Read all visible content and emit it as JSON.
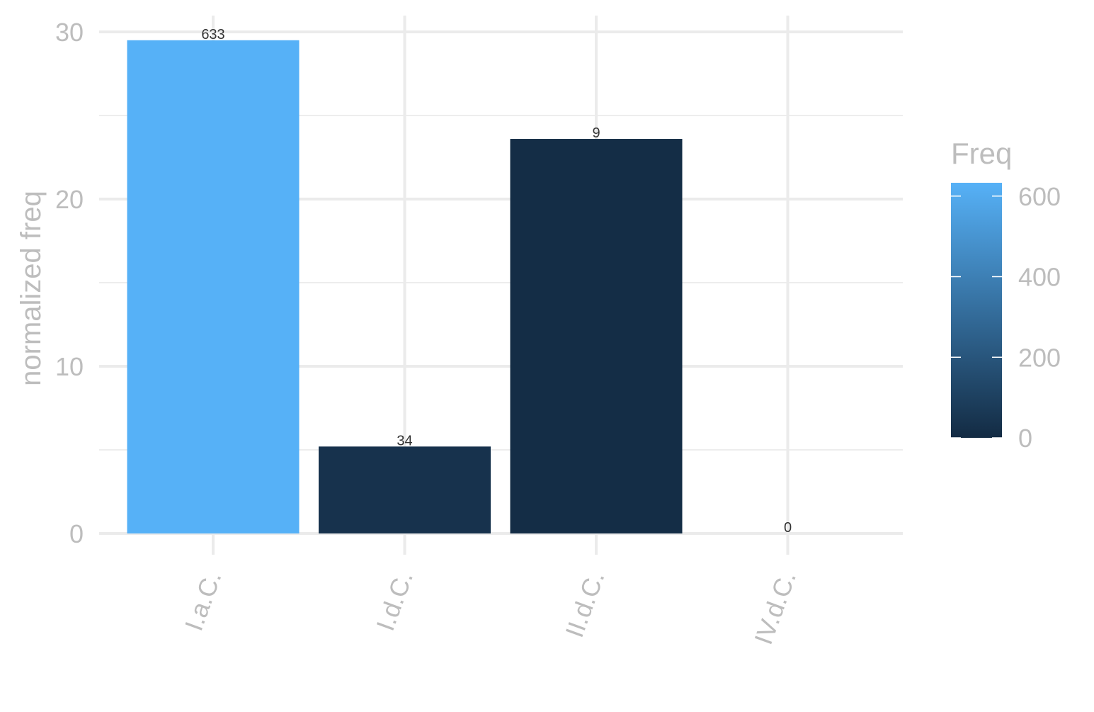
{
  "chart_data": {
    "type": "bar",
    "title": "",
    "xlabel": "",
    "ylabel": "normalized freq",
    "categories": [
      "I.a.C.",
      "I.d.C.",
      "II.d.C.",
      "IV.d.C."
    ],
    "values": [
      29.5,
      5.2,
      23.6,
      0
    ],
    "bar_labels": [
      "633",
      "34",
      "9",
      "0"
    ],
    "fill_values": [
      633,
      34,
      9,
      0
    ],
    "ylim": [
      0,
      30
    ],
    "y_ticks": [
      0,
      10,
      20,
      30
    ],
    "y_tick_labels": [
      "0",
      "10",
      "20",
      "30"
    ],
    "grid": true,
    "legend": {
      "title": "Freq",
      "type": "colorbar",
      "placement": "right",
      "range": [
        0,
        633
      ],
      "ticks": [
        0,
        200,
        400,
        600
      ],
      "tick_labels": [
        "0",
        "200",
        "400",
        "600"
      ],
      "low_color": "#132b43",
      "high_color": "#56b1f7"
    }
  }
}
